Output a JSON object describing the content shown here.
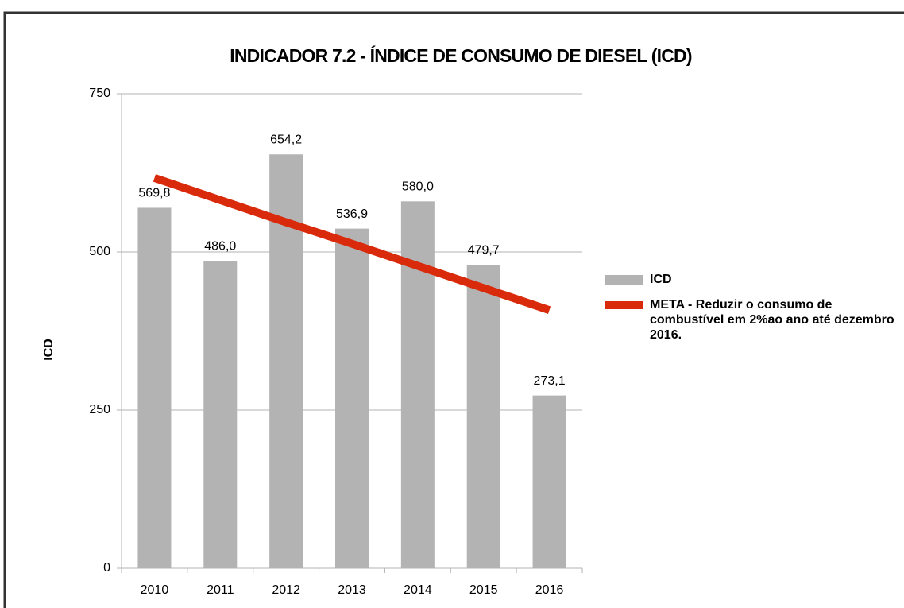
{
  "chart_data": {
    "type": "bar",
    "title": "INDICADOR 7.2 - ÍNDICE DE CONSUMO DE DIESEL (ICD)",
    "y_label": "ICD",
    "categories": [
      "2010",
      "2011",
      "2012",
      "2013",
      "2014",
      "2015",
      "2016"
    ],
    "series": [
      {
        "name": "ICD",
        "type": "bar",
        "color": "#b3b3b3",
        "values": [
          569.8,
          486.0,
          654.2,
          536.9,
          580.0,
          479.7,
          273.1
        ],
        "value_labels": [
          "569,8",
          "486,0",
          "654,2",
          "536,9",
          "580,0",
          "479,7",
          "273,1"
        ]
      },
      {
        "name": "META - Reduzir  o consumo de combustível em 2%ao ano até dezembro 2016.",
        "type": "line",
        "color": "#d92b0c",
        "values": [
          617,
          582,
          547,
          513,
          478,
          443,
          408
        ]
      }
    ],
    "ylim": [
      0,
      750
    ],
    "yticks": [
      0,
      250,
      500,
      750
    ],
    "grid": true,
    "legend": "right"
  }
}
